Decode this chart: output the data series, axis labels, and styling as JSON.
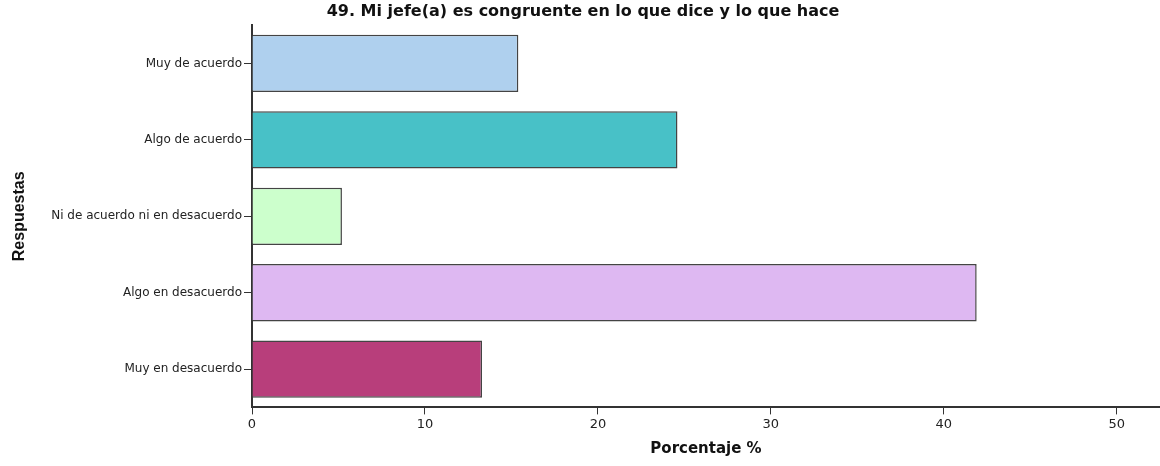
{
  "chart_data": {
    "type": "bar",
    "orientation": "horizontal",
    "title": "49. Mi jefe(a) es congruente en lo que dice y lo que hace",
    "xlabel": "Porcentaje %",
    "ylabel": "Respuestas",
    "categories": [
      "Muy de acuerdo",
      "Algo de acuerdo",
      "Ni de acuerdo ni en desacuerdo",
      "Algo en desacuerdo",
      "Muy en desacuerdo"
    ],
    "values": [
      15.4,
      24.6,
      5.2,
      41.9,
      13.3
    ],
    "colors": [
      "#afd0ee",
      "#48c1c7",
      "#ccffcc",
      "#deb8f2",
      "#b83e7b"
    ],
    "xlim": [
      0,
      52.5
    ],
    "xticks": [
      0,
      10,
      20,
      30,
      40,
      50
    ],
    "grid": false,
    "legend": false
  }
}
